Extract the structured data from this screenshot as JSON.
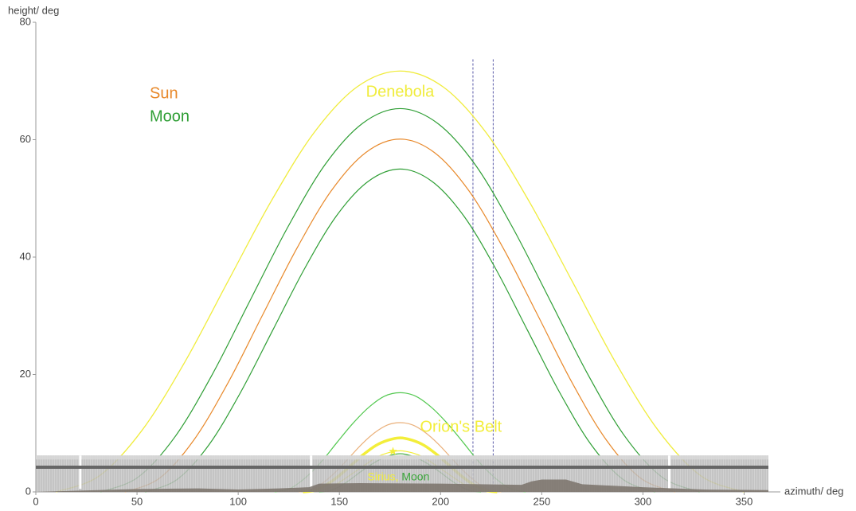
{
  "chart_data": {
    "type": "line",
    "xlabel": "azimuth/ deg",
    "ylabel": "height/ deg",
    "xlim": [
      0,
      362
    ],
    "ylim": [
      0,
      80
    ],
    "xticks": [
      0,
      50,
      100,
      150,
      200,
      250,
      300,
      350
    ],
    "yticks": [
      0,
      20,
      40,
      60,
      80
    ],
    "legend": [
      {
        "name": "Sun",
        "color": "#e8892b"
      },
      {
        "name": "Moon",
        "color": "#2e9e34"
      }
    ],
    "separator": ", ",
    "series": [
      {
        "name": "Denebola",
        "color": "#f0ec3c",
        "width": 1.3,
        "x": [
          10,
          31.25,
          52.5,
          73.75,
          95,
          116.25,
          137.5,
          158.75,
          180,
          201.25,
          222.5,
          243.75,
          265,
          286.25,
          307.5,
          328.75,
          350
        ],
        "values": [
          0,
          2.7,
          10.5,
          22.2,
          35.9,
          49.5,
          61.2,
          69.0,
          71.7,
          69.0,
          61.2,
          49.5,
          35.9,
          22.2,
          10.5,
          2.7,
          0
        ]
      },
      {
        "color": "#2e9e34",
        "width": 1.2,
        "x": [
          32,
          50.5,
          69,
          87.5,
          106,
          124.5,
          143,
          161.5,
          180,
          198.5,
          217,
          235.5,
          254,
          272.5,
          291,
          309.5,
          328
        ],
        "values": [
          0,
          2.5,
          9.5,
          20.2,
          32.7,
          45.1,
          55.8,
          62.8,
          65.3,
          62.8,
          55.8,
          45.1,
          32.7,
          20.2,
          9.5,
          2.5,
          0
        ]
      },
      {
        "color": "#e8892b",
        "width": 1.2,
        "x": [
          44,
          61,
          78,
          95,
          112,
          129,
          146,
          163,
          180,
          197,
          214,
          231,
          248,
          265,
          282,
          299,
          316
        ],
        "values": [
          0,
          2.3,
          8.8,
          18.6,
          30.1,
          41.5,
          51.3,
          57.8,
          60.1,
          57.8,
          51.3,
          41.5,
          30.1,
          18.6,
          8.8,
          2.3,
          0
        ]
      },
      {
        "color": "#2e9e34",
        "width": 1.2,
        "x": [
          54,
          69.75,
          85.5,
          101.25,
          117,
          132.75,
          148.5,
          164.25,
          180,
          195.75,
          211.5,
          227.25,
          243,
          258.75,
          274.5,
          290.25,
          306
        ],
        "values": [
          0,
          2.1,
          8.0,
          17.0,
          27.5,
          38.0,
          47.0,
          52.9,
          55,
          52.9,
          47.0,
          38.0,
          27.5,
          17.0,
          8.0,
          2.1,
          0
        ]
      },
      {
        "color": "#52c84f",
        "width": 1.2,
        "x": [
          118,
          125.75,
          133.5,
          141.25,
          149,
          156.75,
          164.5,
          172.25,
          180,
          187.75,
          195.5,
          203.25,
          211,
          218.75,
          226.5,
          234.25,
          242
        ],
        "values": [
          0,
          0.6,
          2.5,
          5.2,
          8.5,
          11.7,
          14.4,
          16.3,
          16.9,
          16.3,
          14.4,
          11.7,
          8.5,
          5.2,
          2.5,
          0.6,
          0
        ]
      },
      {
        "color": "#eab07a",
        "width": 1.2,
        "x": [
          130,
          136.25,
          142.5,
          148.75,
          155,
          161.25,
          167.5,
          173.75,
          180,
          186.25,
          192.5,
          198.75,
          205,
          211.25,
          217.5,
          223.75,
          230
        ],
        "values": [
          0,
          0.4,
          1.7,
          3.6,
          5.9,
          8.2,
          10.1,
          11.4,
          11.8,
          11.4,
          10.1,
          8.2,
          5.9,
          3.6,
          1.7,
          0.4,
          0
        ]
      },
      {
        "name": "Orion's Belt",
        "color": "#f3ee3a",
        "width": 3.5,
        "x": [
          132,
          138,
          144,
          150,
          156,
          162,
          168,
          174,
          180,
          186,
          192,
          198,
          204,
          210,
          216,
          222,
          228
        ],
        "values": [
          0,
          0.3,
          1.3,
          2.8,
          4.6,
          6.4,
          7.9,
          8.8,
          9.2,
          8.8,
          7.9,
          6.4,
          4.6,
          2.8,
          1.3,
          0.3,
          0
        ]
      },
      {
        "name": "Moon",
        "color": "#3aa63a",
        "width": 1.2,
        "x": [
          140,
          145,
          150,
          155,
          160,
          165,
          170,
          175,
          180,
          185,
          190,
          195,
          200,
          205,
          210,
          215,
          220
        ],
        "values": [
          0,
          0.2,
          0.9,
          2.0,
          3.3,
          4.5,
          5.5,
          6.2,
          6.5,
          6.2,
          5.5,
          4.5,
          3.3,
          2.0,
          0.9,
          0.2,
          0
        ]
      },
      {
        "name": "Sirius",
        "color": "#f3ee3a",
        "width": 1.2,
        "marker": [
          176.5,
          6.8
        ],
        "x": [
          136,
          141.5,
          147,
          152.5,
          158,
          163.5,
          169,
          174.5,
          180,
          185.5,
          191,
          196.5,
          202,
          207.5,
          213,
          218.5,
          224
        ],
        "values": [
          0,
          0.3,
          1.0,
          2.2,
          3.5,
          4.8,
          6.0,
          6.7,
          7.0,
          6.7,
          6.0,
          4.8,
          3.5,
          2.2,
          1.0,
          0.3,
          0
        ]
      }
    ],
    "vlines": {
      "x": [
        216,
        226
      ],
      "ymax": 73.7,
      "color": "#5a5aa8"
    },
    "horizon": {
      "band_top": 6.2,
      "line": 4.2,
      "gaps": [
        22,
        136,
        313
      ],
      "x": [
        0,
        20,
        50,
        80,
        100,
        120,
        135,
        140,
        160,
        200,
        240,
        245,
        250,
        262,
        270,
        300,
        330,
        362
      ],
      "values": [
        0,
        0.2,
        0.5,
        0.6,
        0.4,
        0.6,
        0.8,
        1.4,
        1.5,
        1.4,
        1.2,
        1.8,
        2.1,
        2.1,
        1.3,
        0.8,
        0.4,
        0.3
      ]
    }
  }
}
